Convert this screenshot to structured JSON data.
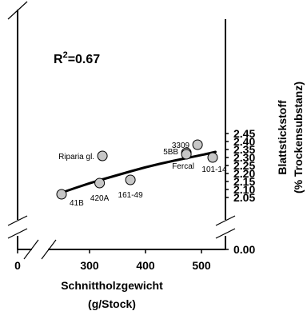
{
  "chart_data": {
    "type": "scatter",
    "xlabel_line1": "Schnittholzgewicht",
    "xlabel_line2": "(g/Stock)",
    "ylabel_line1": "Blattstickstoff",
    "ylabel_line2": "(% Trockensubstanz)",
    "annotation": {
      "prefix": "R",
      "sup": "2",
      "suffix": "=0.67"
    },
    "x_ticks": [
      {
        "value": 0,
        "label": "0"
      },
      {
        "value": 300,
        "label": "300"
      },
      {
        "value": 400,
        "label": "400"
      },
      {
        "value": 500,
        "label": "500"
      }
    ],
    "y_ticks": [
      {
        "value": 0.0,
        "label": "0.00"
      },
      {
        "value": 2.05,
        "label": "2.05"
      },
      {
        "value": 2.1,
        "label": "2.10"
      },
      {
        "value": 2.15,
        "label": "2.15"
      },
      {
        "value": 2.2,
        "label": "2.20"
      },
      {
        "value": 2.25,
        "label": "2.25"
      },
      {
        "value": 2.3,
        "label": "2.30"
      },
      {
        "value": 2.35,
        "label": "2.35"
      },
      {
        "value": 2.4,
        "label": "2.40"
      },
      {
        "value": 2.45,
        "label": "2.45"
      }
    ],
    "axis_breaks": true,
    "grid": false,
    "points": [
      {
        "label": "41B",
        "x": 250,
        "y": 2.07
      },
      {
        "label": "420A",
        "x": 318,
        "y": 2.14
      },
      {
        "label": "161-49",
        "x": 373,
        "y": 2.16
      },
      {
        "label": "Riparia gl.",
        "x": 323,
        "y": 2.31
      },
      {
        "label": "3309",
        "x": 493,
        "y": 2.38
      },
      {
        "label": "5BB",
        "x": 473,
        "y": 2.33
      },
      {
        "label": "Fercal",
        "x": 473,
        "y": 2.32
      },
      {
        "label": "101-14",
        "x": 520,
        "y": 2.3
      }
    ],
    "trendline": {
      "type": "quadratic",
      "x_start": 250,
      "x_end": 525,
      "points": [
        {
          "x": 250,
          "y": 2.08
        },
        {
          "x": 300,
          "y": 2.14
        },
        {
          "x": 350,
          "y": 2.19
        },
        {
          "x": 400,
          "y": 2.24
        },
        {
          "x": 450,
          "y": 2.28
        },
        {
          "x": 500,
          "y": 2.315
        },
        {
          "x": 525,
          "y": 2.335
        }
      ]
    }
  }
}
